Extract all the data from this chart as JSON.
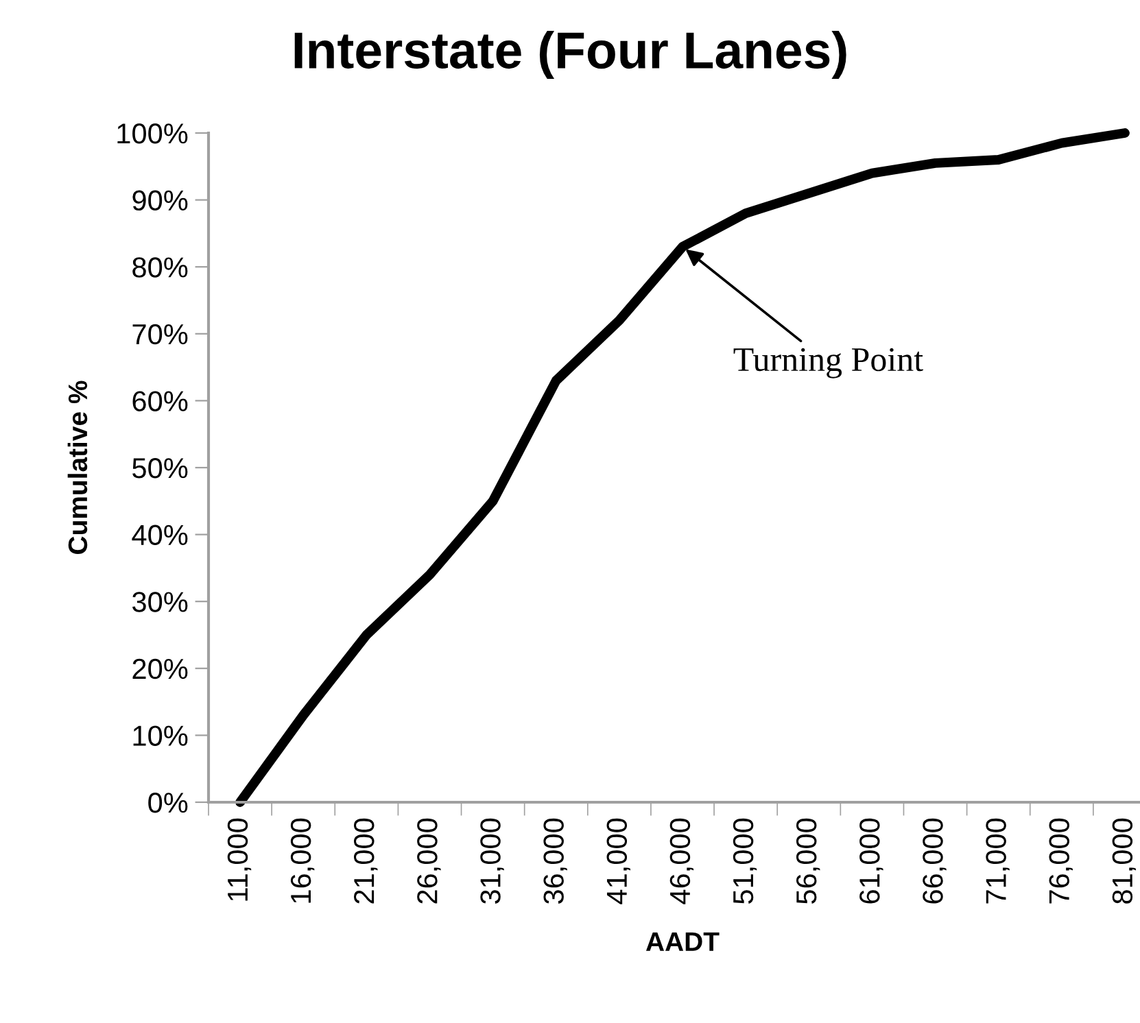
{
  "chart_data": {
    "type": "line",
    "title": "Interstate (Four Lanes)",
    "xlabel": "AADT",
    "ylabel": "Cumulative %",
    "categories": [
      "11,000",
      "16,000",
      "21,000",
      "26,000",
      "31,000",
      "36,000",
      "41,000",
      "46,000",
      "51,000",
      "56,000",
      "61,000",
      "66,000",
      "71,000",
      "76,000",
      "81,000"
    ],
    "series": [
      {
        "color": "#000000",
        "values": [
          0,
          13,
          25,
          34,
          45,
          63,
          72,
          83,
          88,
          91,
          94,
          95.5,
          96,
          98.5,
          100
        ]
      }
    ],
    "ylim": [
      0,
      100
    ],
    "yticks": [
      {
        "value": 0,
        "label": "0%"
      },
      {
        "value": 10,
        "label": "10%"
      },
      {
        "value": 20,
        "label": "20%"
      },
      {
        "value": 30,
        "label": "30%"
      },
      {
        "value": 40,
        "label": "40%"
      },
      {
        "value": 50,
        "label": "50%"
      },
      {
        "value": 60,
        "label": "60%"
      },
      {
        "value": 70,
        "label": "70%"
      },
      {
        "value": 80,
        "label": "80%"
      },
      {
        "value": 90,
        "label": "90%"
      },
      {
        "value": 100,
        "label": "100%"
      }
    ],
    "annotations": [
      {
        "text": "Turning Point",
        "x": "46,000",
        "y": 83
      }
    ],
    "grid": false,
    "legend": false,
    "marker": "none",
    "line_style": "solid"
  }
}
